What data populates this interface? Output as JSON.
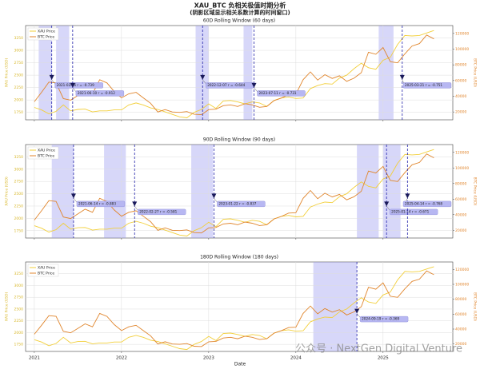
{
  "title": "XAU_BTC 负相关极值时期分析",
  "subtitle": "(阴影区域显示相关系数计算的时间窗口)",
  "xlabel": "Date",
  "watermark": "公众号 · NextGen Digital Venture",
  "chart_data": [
    {
      "type": "line",
      "title": "60D Rolling Window (60 days)",
      "ylabel": "XAU Price (USD)",
      "y2label": "BTC Price (USD)",
      "xlim": [
        2020.9,
        2025.8
      ],
      "xticks": [
        2021,
        2022,
        2023,
        2024,
        2025
      ],
      "ylim": [
        1600,
        3500
      ],
      "yticks": [
        1750,
        2000,
        2250,
        2500,
        2750,
        3000,
        3250
      ],
      "y2lim": [
        10000,
        130000
      ],
      "y2ticks": [
        20000,
        40000,
        60000,
        80000,
        100000,
        120000
      ],
      "grid": true,
      "legend": "upper left",
      "x": [
        2021.0,
        2021.083,
        2021.167,
        2021.25,
        2021.333,
        2021.417,
        2021.5,
        2021.583,
        2021.667,
        2021.75,
        2021.833,
        2021.917,
        2022.0,
        2022.083,
        2022.167,
        2022.25,
        2022.333,
        2022.417,
        2022.5,
        2022.583,
        2022.667,
        2022.75,
        2022.833,
        2022.917,
        2023.0,
        2023.083,
        2023.167,
        2023.25,
        2023.333,
        2023.417,
        2023.5,
        2023.583,
        2023.667,
        2023.75,
        2023.833,
        2023.917,
        2024.0,
        2024.083,
        2024.167,
        2024.25,
        2024.333,
        2024.417,
        2024.5,
        2024.583,
        2024.667,
        2024.75,
        2024.833,
        2024.917,
        2025.0,
        2025.083,
        2025.167,
        2025.25,
        2025.333,
        2025.417,
        2025.5,
        2025.583
      ],
      "series": [
        {
          "name": "XAU Price",
          "color": "#f2cf3a",
          "values": [
            1850,
            1800,
            1720,
            1770,
            1900,
            1780,
            1810,
            1815,
            1760,
            1780,
            1780,
            1800,
            1800,
            1900,
            1940,
            1900,
            1840,
            1810,
            1760,
            1710,
            1660,
            1640,
            1750,
            1810,
            1920,
            1830,
            1980,
            1990,
            1960,
            1920,
            1960,
            1940,
            1870,
            1990,
            2040,
            2060,
            2030,
            2040,
            2230,
            2290,
            2330,
            2320,
            2440,
            2500,
            2630,
            2740,
            2650,
            2620,
            2800,
            2860,
            3120,
            3300,
            3290,
            3300,
            3350,
            3400
          ]
        },
        {
          "name": "BTC Price",
          "color": "#e0852c",
          "axis": "y2",
          "values": [
            33000,
            45000,
            58000,
            57000,
            37000,
            35000,
            41000,
            47000,
            43000,
            61000,
            57000,
            46000,
            38000,
            43000,
            45000,
            38000,
            31000,
            20000,
            23000,
            20000,
            19500,
            20500,
            17000,
            16500,
            23000,
            23500,
            28000,
            29000,
            27000,
            30500,
            29000,
            26000,
            27000,
            34500,
            37700,
            42000,
            42500,
            61000,
            71000,
            60500,
            67500,
            62700,
            66000,
            59000,
            63000,
            70000,
            96000,
            93500,
            102000,
            84000,
            82500,
            94000,
            104000,
            107000,
            118000,
            113000
          ]
        }
      ],
      "spans": [
        [
          2021.05,
          2021.2
        ],
        [
          2021.25,
          2021.4
        ],
        [
          2022.85,
          2023.0
        ],
        [
          2023.4,
          2023.5
        ],
        [
          2024.95,
          2025.12
        ]
      ],
      "annotations": [
        {
          "x": 2021.2,
          "text": "2021-03-16 r = -0.739"
        },
        {
          "x": 2021.44,
          "text": "2021-06-10 r = -0.912"
        },
        {
          "x": 2022.93,
          "text": "2022-12-07 r = -0.644"
        },
        {
          "x": 2023.52,
          "text": "2023-07-11 r = -0.731"
        },
        {
          "x": 2025.22,
          "text": "2025-03-21 r = -0.751"
        }
      ]
    },
    {
      "type": "line",
      "title": "90D Rolling Window (90 days)",
      "ylabel": "XAU Price (USD)",
      "y2label": "BTC Price (USD)",
      "xlim": [
        2020.9,
        2025.8
      ],
      "xticks": [
        2021,
        2022,
        2023,
        2024,
        2025
      ],
      "ylim": [
        1600,
        3500
      ],
      "yticks": [
        1750,
        2000,
        2250,
        2500,
        2750,
        3000,
        3250
      ],
      "y2lim": [
        10000,
        130000
      ],
      "y2ticks": [
        20000,
        40000,
        60000,
        80000,
        100000,
        120000
      ],
      "grid": true,
      "legend": "upper left",
      "x": [
        2021.0,
        2021.083,
        2021.167,
        2021.25,
        2021.333,
        2021.417,
        2021.5,
        2021.583,
        2021.667,
        2021.75,
        2021.833,
        2021.917,
        2022.0,
        2022.083,
        2022.167,
        2022.25,
        2022.333,
        2022.417,
        2022.5,
        2022.583,
        2022.667,
        2022.75,
        2022.833,
        2022.917,
        2023.0,
        2023.083,
        2023.167,
        2023.25,
        2023.333,
        2023.417,
        2023.5,
        2023.583,
        2023.667,
        2023.75,
        2023.833,
        2023.917,
        2024.0,
        2024.083,
        2024.167,
        2024.25,
        2024.333,
        2024.417,
        2024.5,
        2024.583,
        2024.667,
        2024.75,
        2024.833,
        2024.917,
        2025.0,
        2025.083,
        2025.167,
        2025.25,
        2025.333,
        2025.417,
        2025.5,
        2025.583
      ],
      "series": [
        {
          "name": "XAU Price",
          "color": "#f2cf3a",
          "values": [
            1850,
            1800,
            1720,
            1770,
            1900,
            1780,
            1810,
            1815,
            1760,
            1780,
            1780,
            1800,
            1800,
            1900,
            1940,
            1900,
            1840,
            1810,
            1760,
            1710,
            1660,
            1640,
            1750,
            1810,
            1920,
            1830,
            1980,
            1990,
            1960,
            1920,
            1960,
            1940,
            1870,
            1990,
            2040,
            2060,
            2030,
            2040,
            2230,
            2290,
            2330,
            2320,
            2440,
            2500,
            2630,
            2740,
            2650,
            2620,
            2800,
            2860,
            3120,
            3300,
            3290,
            3300,
            3350,
            3400
          ]
        },
        {
          "name": "BTC Price",
          "color": "#e0852c",
          "axis": "y2",
          "values": [
            33000,
            45000,
            58000,
            57000,
            37000,
            35000,
            41000,
            47000,
            43000,
            61000,
            57000,
            46000,
            38000,
            43000,
            45000,
            38000,
            31000,
            20000,
            23000,
            20000,
            19500,
            20500,
            17000,
            16500,
            23000,
            23500,
            28000,
            29000,
            27000,
            30500,
            29000,
            26000,
            27000,
            34500,
            37700,
            42000,
            42500,
            61000,
            71000,
            60500,
            67500,
            62700,
            66000,
            59000,
            63000,
            70000,
            96000,
            93500,
            102000,
            84000,
            82500,
            94000,
            104000,
            107000,
            118000,
            113000
          ]
        }
      ],
      "spans": [
        [
          2021.2,
          2021.45
        ],
        [
          2021.8,
          2022.05
        ],
        [
          2022.8,
          2023.05
        ],
        [
          2024.7,
          2024.95
        ],
        [
          2025.0,
          2025.2
        ]
      ],
      "annotations": [
        {
          "x": 2021.45,
          "text": "2021-06-14 r = -0.883"
        },
        {
          "x": 2022.15,
          "text": "2022-02-27 r = -0.581"
        },
        {
          "x": 2023.06,
          "text": "2023-01-22 r = -0.837"
        },
        {
          "x": 2025.04,
          "text": "2025-01-14 r = -0.671"
        },
        {
          "x": 2025.28,
          "text": "2025-04-14 r = -0.768"
        }
      ]
    },
    {
      "type": "line",
      "title": "180D Rolling Window (180 days)",
      "ylabel": "XAU Price (USD)",
      "y2label": "BTC Price (USD)",
      "xlim": [
        2020.9,
        2025.8
      ],
      "xticks": [
        2021,
        2022,
        2023,
        2024,
        2025
      ],
      "ylim": [
        1600,
        3500
      ],
      "yticks": [
        1750,
        2000,
        2250,
        2500,
        2750,
        3000,
        3250
      ],
      "y2lim": [
        10000,
        130000
      ],
      "y2ticks": [
        20000,
        40000,
        60000,
        80000,
        100000,
        120000
      ],
      "grid": true,
      "legend": "upper left",
      "x": [
        2021.0,
        2021.083,
        2021.167,
        2021.25,
        2021.333,
        2021.417,
        2021.5,
        2021.583,
        2021.667,
        2021.75,
        2021.833,
        2021.917,
        2022.0,
        2022.083,
        2022.167,
        2022.25,
        2022.333,
        2022.417,
        2022.5,
        2022.583,
        2022.667,
        2022.75,
        2022.833,
        2022.917,
        2023.0,
        2023.083,
        2023.167,
        2023.25,
        2023.333,
        2023.417,
        2023.5,
        2023.583,
        2023.667,
        2023.75,
        2023.833,
        2023.917,
        2024.0,
        2024.083,
        2024.167,
        2024.25,
        2024.333,
        2024.417,
        2024.5,
        2024.583,
        2024.667,
        2024.75,
        2024.833,
        2024.917,
        2025.0,
        2025.083,
        2025.167,
        2025.25,
        2025.333,
        2025.417,
        2025.5,
        2025.583
      ],
      "series": [
        {
          "name": "XAU Price",
          "color": "#f2cf3a",
          "values": [
            1850,
            1800,
            1720,
            1770,
            1900,
            1780,
            1810,
            1815,
            1760,
            1780,
            1780,
            1800,
            1800,
            1900,
            1940,
            1900,
            1840,
            1810,
            1760,
            1710,
            1660,
            1640,
            1750,
            1810,
            1920,
            1830,
            1980,
            1990,
            1960,
            1920,
            1960,
            1940,
            1870,
            1990,
            2040,
            2060,
            2030,
            2040,
            2230,
            2290,
            2330,
            2320,
            2440,
            2500,
            2630,
            2740,
            2650,
            2620,
            2800,
            2860,
            3120,
            3300,
            3290,
            3300,
            3350,
            3400
          ]
        },
        {
          "name": "BTC Price",
          "color": "#e0852c",
          "axis": "y2",
          "values": [
            33000,
            45000,
            58000,
            57000,
            37000,
            35000,
            41000,
            47000,
            43000,
            61000,
            57000,
            46000,
            38000,
            43000,
            45000,
            38000,
            31000,
            20000,
            23000,
            20000,
            19500,
            20500,
            17000,
            16500,
            23000,
            23500,
            28000,
            29000,
            27000,
            30500,
            29000,
            26000,
            27000,
            34500,
            37700,
            42000,
            42500,
            61000,
            71000,
            60500,
            67500,
            62700,
            66000,
            59000,
            63000,
            70000,
            96000,
            93500,
            102000,
            84000,
            82500,
            94000,
            104000,
            107000,
            118000,
            113000
          ]
        }
      ],
      "spans": [
        [
          2024.2,
          2024.7
        ]
      ],
      "annotations": [
        {
          "x": 2024.7,
          "text": "2024-09-19 r = -0.369"
        }
      ]
    }
  ]
}
